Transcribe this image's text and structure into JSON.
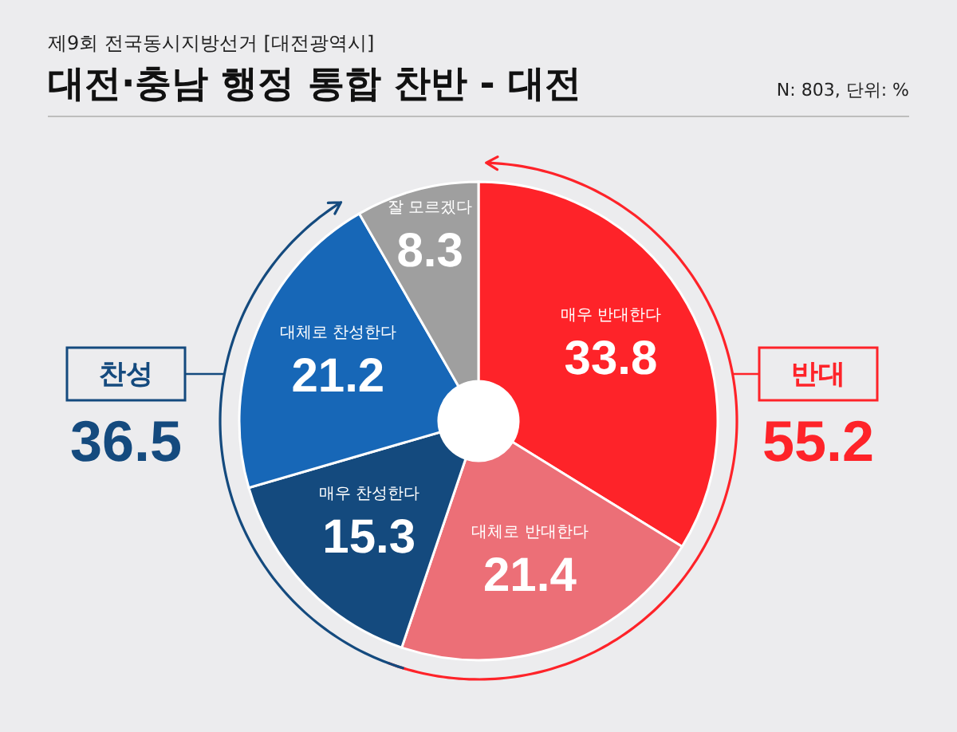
{
  "chart_data": {
    "type": "donut",
    "subtitle": "제9회 전국동시지방선거 [대전광역시]",
    "title": "대전·충남 행정 통합 찬반 - 대전",
    "categories": [
      "매우 반대한다",
      "대체로 반대한다",
      "매우 찬성한다",
      "대체로 찬성한다",
      "잘 모르겠다"
    ],
    "values": [
      33.8,
      21.4,
      15.3,
      21.2,
      8.3
    ],
    "colors": [
      "#fe2329",
      "#ec6f77",
      "#144a7e",
      "#1767b7",
      "#9f9f9f"
    ],
    "data_labels": true,
    "annotations": [
      "N: 803, 단위: %",
      "찬성",
      "36.5",
      "반대",
      "55.2"
    ]
  }
}
